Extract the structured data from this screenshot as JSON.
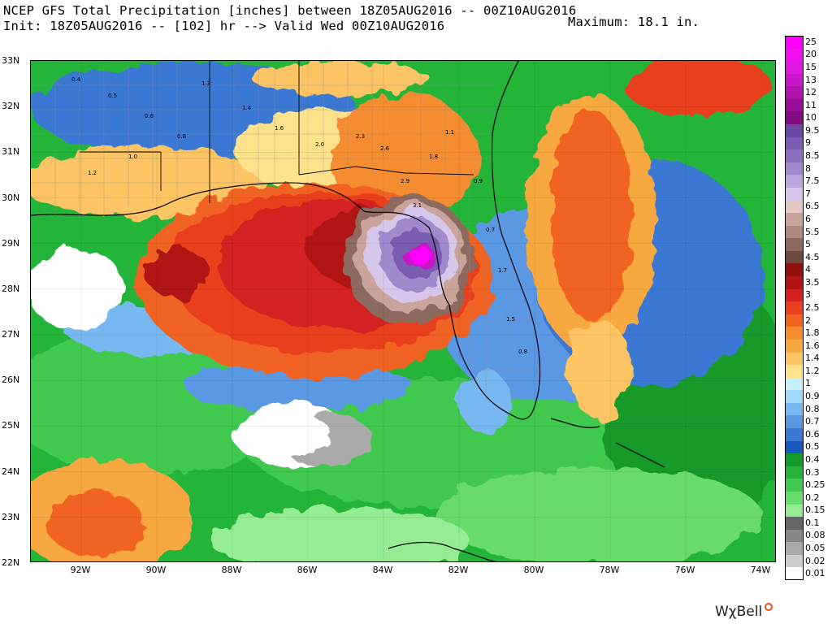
{
  "header": {
    "line1": "NCEP GFS Total Precipitation [inches] between 18Z05AUG2016 -- 00Z10AUG2016",
    "line2": "Init: 18Z05AUG2016 -- [102] hr --> Valid Wed 00Z10AUG2016",
    "maximum": "Maximum: 18.1 in."
  },
  "axes": {
    "lat_labels": [
      "33N",
      "32N",
      "31N",
      "30N",
      "29N",
      "28N",
      "27N",
      "26N",
      "25N",
      "24N",
      "23N",
      "22N"
    ],
    "lon_labels": [
      "92W",
      "90W",
      "88W",
      "86W",
      "84W",
      "82W",
      "80W",
      "78W",
      "76W",
      "74W"
    ]
  },
  "legend": [
    {
      "label": "25",
      "color": "#ff00ff"
    },
    {
      "label": "20",
      "color": "#f010f0"
    },
    {
      "label": "15",
      "color": "#de18de"
    },
    {
      "label": "13",
      "color": "#c816c8"
    },
    {
      "label": "12",
      "color": "#b012b0"
    },
    {
      "label": "11",
      "color": "#980e98"
    },
    {
      "label": "10",
      "color": "#800a80"
    },
    {
      "label": "9.5",
      "color": "#6a4aa0"
    },
    {
      "label": "9",
      "color": "#7a5cb0"
    },
    {
      "label": "8.5",
      "color": "#8c70bf"
    },
    {
      "label": "8",
      "color": "#a08acd"
    },
    {
      "label": "7.5",
      "color": "#b8a6dc"
    },
    {
      "label": "7",
      "color": "#d6c6ea"
    },
    {
      "label": "6.5",
      "color": "#e2c6c0"
    },
    {
      "label": "6",
      "color": "#c8a49a"
    },
    {
      "label": "5.5",
      "color": "#ae8a80"
    },
    {
      "label": "5",
      "color": "#8c6a60"
    },
    {
      "label": "4.5",
      "color": "#6c4a40"
    },
    {
      "label": "4",
      "color": "#901010"
    },
    {
      "label": "3.5",
      "color": "#b01414"
    },
    {
      "label": "3",
      "color": "#d42020"
    },
    {
      "label": "2.5",
      "color": "#e8401e"
    },
    {
      "label": "2",
      "color": "#f06420"
    },
    {
      "label": "1.8",
      "color": "#f48c30"
    },
    {
      "label": "1.6",
      "color": "#f8a840"
    },
    {
      "label": "1.4",
      "color": "#fcc464"
    },
    {
      "label": "1.2",
      "color": "#fde28c"
    },
    {
      "label": "1",
      "color": "#c8f0fa"
    },
    {
      "label": "0.9",
      "color": "#a0d8f8"
    },
    {
      "label": "0.8",
      "color": "#78b8f0"
    },
    {
      "label": "0.7",
      "color": "#5a98e4"
    },
    {
      "label": "0.6",
      "color": "#3a78d4"
    },
    {
      "label": "0.5",
      "color": "#1a58c0"
    },
    {
      "label": "0.4",
      "color": "#129a2a"
    },
    {
      "label": "0.3",
      "color": "#24b43a"
    },
    {
      "label": "0.25",
      "color": "#40c850"
    },
    {
      "label": "0.2",
      "color": "#68dc6a"
    },
    {
      "label": "0.15",
      "color": "#96ec92"
    },
    {
      "label": "0.1",
      "color": "#646464"
    },
    {
      "label": "0.08",
      "color": "#888888"
    },
    {
      "label": "0.05",
      "color": "#aaaaaa"
    },
    {
      "label": "0.02",
      "color": "#cccccc"
    },
    {
      "label": "0.01",
      "color": "#ffffff"
    }
  ],
  "map_values": [
    "0.4",
    "0.5",
    "0.6",
    "0.8",
    "1.0",
    "1.2",
    "1.3",
    "1.4",
    "1.6",
    "2.0",
    "2.3",
    "2.6",
    "2.9",
    "3.1",
    "1.8",
    "1.1",
    "0.9",
    "0.7",
    "1.7",
    "1.5",
    "0.8"
  ],
  "brand": "WχBell",
  "colors": {
    "gulf_max": "#d42020",
    "core": "#ff00ff",
    "ocean_green": "#24b43a",
    "land_blue": "#3a78d4"
  }
}
